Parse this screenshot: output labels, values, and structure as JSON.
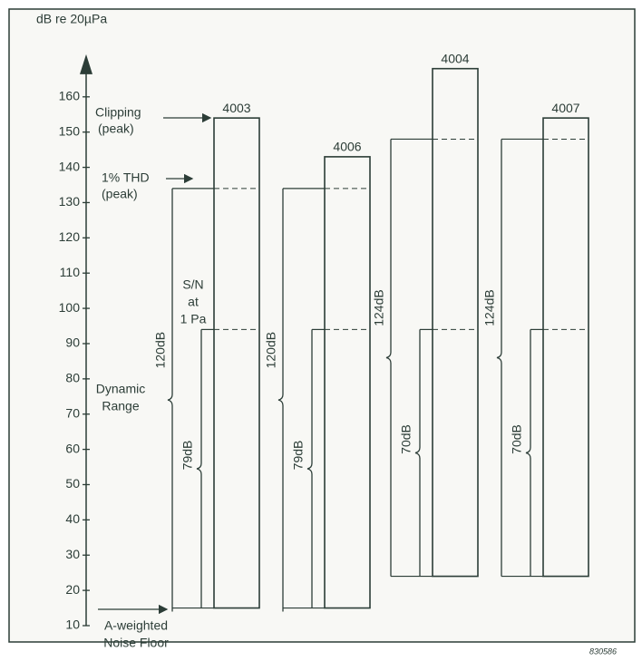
{
  "chart_data": {
    "type": "dynamic-range",
    "y_label": "dB re 20µPa",
    "ylim": [
      10,
      170
    ],
    "yticks": [
      10,
      20,
      30,
      40,
      50,
      60,
      70,
      80,
      90,
      100,
      110,
      120,
      130,
      140,
      150,
      160
    ],
    "categories": [
      "4003",
      "4006",
      "4004",
      "4007"
    ],
    "clipping": [
      154,
      143,
      168,
      154
    ],
    "thd": [
      134,
      134,
      148,
      148
    ],
    "ref_level": [
      94,
      94,
      94,
      94
    ],
    "noise_floor": [
      15,
      15,
      24,
      24
    ],
    "dynamic_range": {
      "values": [
        120,
        120,
        124,
        124
      ],
      "value_labels": [
        "120dB",
        "120dB",
        "124dB",
        "124dB"
      ]
    },
    "s_n": {
      "values": [
        79,
        79,
        70,
        70
      ],
      "value_labels": [
        "79dB",
        "79dB",
        "70dB",
        "70dB"
      ]
    },
    "annotations": {
      "clipping": [
        "Clipping",
        "(peak)"
      ],
      "thd": [
        "1% THD",
        "(peak)"
      ],
      "s_n": [
        "S/N",
        "at",
        "1 Pa"
      ],
      "dynamic_range": [
        "Dynamic",
        "Range"
      ],
      "noise_floor": [
        "A-weighted",
        "Noise Floor"
      ],
      "figure_code": "830586"
    },
    "color": "#2c3d37"
  }
}
